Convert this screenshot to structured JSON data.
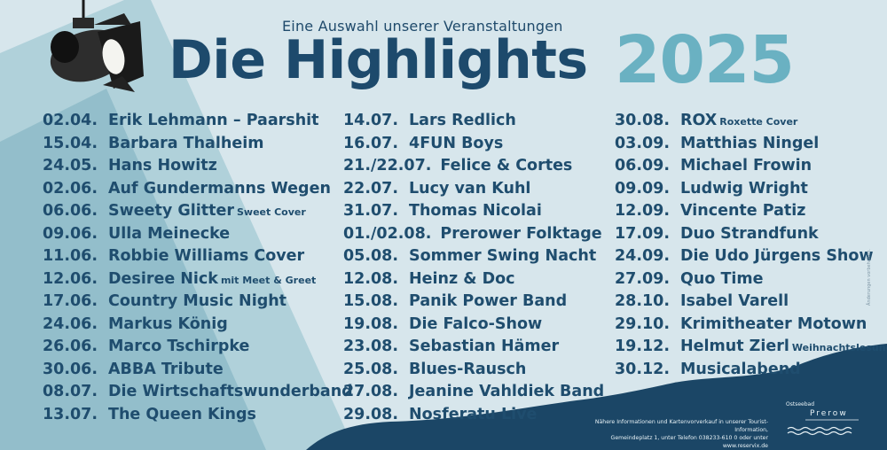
{
  "header": {
    "subtitle": "Eine Auswahl unserer Veranstaltungen",
    "title": "Die Highlights",
    "year": "2025"
  },
  "columns": [
    [
      {
        "date": "02.04.",
        "name": "Erik Lehmann – Paarshit",
        "note": ""
      },
      {
        "date": "15.04.",
        "name": "Barbara Thalheim",
        "note": ""
      },
      {
        "date": "24.05.",
        "name": "Hans Howitz",
        "note": ""
      },
      {
        "date": "02.06.",
        "name": "Auf Gundermanns Wegen",
        "note": ""
      },
      {
        "date": "06.06.",
        "name": "Sweety Glitter",
        "note": "Sweet Cover"
      },
      {
        "date": "09.06.",
        "name": "Ulla Meinecke",
        "note": ""
      },
      {
        "date": "11.06.",
        "name": "Robbie Williams Cover",
        "note": ""
      },
      {
        "date": "12.06.",
        "name": "Desiree Nick",
        "note": "mit Meet & Greet"
      },
      {
        "date": "17.06.",
        "name": "Country Music Night",
        "note": ""
      },
      {
        "date": "24.06.",
        "name": "Markus König",
        "note": ""
      },
      {
        "date": "26.06.",
        "name": "Marco Tschirpke",
        "note": ""
      },
      {
        "date": "30.06.",
        "name": "ABBA Tribute",
        "note": ""
      },
      {
        "date": "08.07.",
        "name": "Die Wirtschaftswunderband",
        "note": ""
      },
      {
        "date": "13.07.",
        "name": "The Queen Kings",
        "note": ""
      }
    ],
    [
      {
        "date": "14.07.",
        "name": "Lars Redlich",
        "note": ""
      },
      {
        "date": "16.07.",
        "name": "4FUN Boys",
        "note": ""
      },
      {
        "date": "21./22.07.",
        "name": "Felice & Cortes",
        "note": ""
      },
      {
        "date": "22.07.",
        "name": "Lucy van Kuhl",
        "note": ""
      },
      {
        "date": "31.07.",
        "name": "Thomas Nicolai",
        "note": ""
      },
      {
        "date": "01./02.08.",
        "name": "Prerower Folktage",
        "note": ""
      },
      {
        "date": "05.08.",
        "name": "Sommer Swing Nacht",
        "note": ""
      },
      {
        "date": "12.08.",
        "name": "Heinz & Doc",
        "note": ""
      },
      {
        "date": "15.08.",
        "name": "Panik Power Band",
        "note": ""
      },
      {
        "date": "19.08.",
        "name": "Die Falco-Show",
        "note": ""
      },
      {
        "date": "23.08.",
        "name": "Sebastian Hämer",
        "note": ""
      },
      {
        "date": "25.08.",
        "name": "Blues-Rausch",
        "note": ""
      },
      {
        "date": "27.08.",
        "name": "Jeanine Vahldiek Band",
        "note": ""
      },
      {
        "date": "29.08.",
        "name": "Nosferatu Live",
        "note": ""
      }
    ],
    [
      {
        "date": "30.08.",
        "name": "ROX",
        "note": "Roxette Cover"
      },
      {
        "date": "03.09.",
        "name": "Matthias Ningel",
        "note": ""
      },
      {
        "date": "06.09.",
        "name": "Michael Frowin",
        "note": ""
      },
      {
        "date": "09.09.",
        "name": "Ludwig Wright",
        "note": ""
      },
      {
        "date": "12.09.",
        "name": "Vincente Patiz",
        "note": ""
      },
      {
        "date": "17.09.",
        "name": "Duo Strandfunk",
        "note": ""
      },
      {
        "date": "24.09.",
        "name": "Die Udo Jürgens Show",
        "note": ""
      },
      {
        "date": "27.09.",
        "name": "Quo Time",
        "note": ""
      },
      {
        "date": "28.10.",
        "name": "Isabel Varell",
        "note": ""
      },
      {
        "date": "29.10.",
        "name": "Krimitheater Motown",
        "note": ""
      },
      {
        "date": "19.12.",
        "name": "Helmut Zierl",
        "note": "Weihnachtslesung"
      },
      {
        "date": "30.12.",
        "name": "Musicalabend",
        "note": ""
      }
    ]
  ],
  "footer": {
    "line1": "Nähere Informationen und Kartenvorverkauf in unserer Tourist-Information,",
    "line2": "Gemeindeplatz 1, unter Telefon 038233-610 0 oder unter www.reservix.de"
  },
  "logo": {
    "small": "Ostseebad",
    "main": "Prerow"
  },
  "disclaimer": "Änderungen vorbehalten.",
  "colors": {
    "background": "#d7e6ec",
    "text_dark": "#1f4d6e",
    "year_accent": "#6ab1c2",
    "spotlight_beam": "#7fb3c2",
    "footer_wave": "#1b4666"
  },
  "icons": {
    "spotlight": "stage-spotlight-icon",
    "waves": "wave-lines-icon"
  }
}
